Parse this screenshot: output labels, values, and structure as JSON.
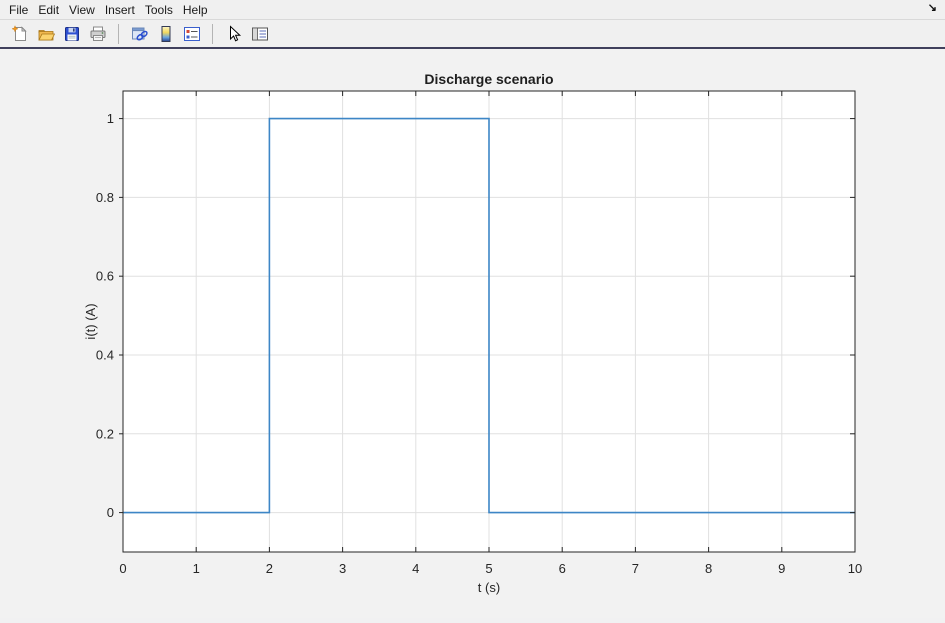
{
  "menubar": {
    "items": [
      {
        "label": "File"
      },
      {
        "label": "Edit"
      },
      {
        "label": "View"
      },
      {
        "label": "Insert"
      },
      {
        "label": "Tools"
      },
      {
        "label": "Help"
      }
    ]
  },
  "corner": {
    "dock_arrow_glyph": "↘"
  },
  "toolbar": {
    "icons": [
      "new-figure-icon",
      "open-file-icon",
      "save-figure-icon",
      "print-figure-icon",
      "link-plot-icon",
      "insert-colorbar-icon",
      "insert-legend-icon",
      "pointer-arrow-icon",
      "plot-tools-icon"
    ]
  },
  "chart_data": {
    "type": "line",
    "title": "Discharge scenario",
    "xlabel": "t (s)",
    "ylabel": "i(t) (A)",
    "xlim": [
      0,
      10
    ],
    "ylim": [
      -0.1,
      1.07
    ],
    "xticks": [
      0,
      1,
      2,
      3,
      4,
      5,
      6,
      7,
      8,
      9,
      10
    ],
    "yticks": [
      0,
      0.2,
      0.4,
      0.6,
      0.8,
      1
    ],
    "grid": true,
    "legend_position": "none",
    "series": [
      {
        "name": "i(t)",
        "color": "#3d86c6",
        "x": [
          0,
          2,
          2,
          5,
          5,
          10
        ],
        "y": [
          0,
          0,
          1,
          1,
          0,
          0
        ]
      }
    ],
    "style": {
      "axis_color": "#262626",
      "grid_color": "#e0e0e0",
      "plot_background": "#ffffff",
      "title_color": "#1f1f1f",
      "tick_font_px": 13,
      "label_font_px": 13,
      "title_font_px": 14
    }
  }
}
